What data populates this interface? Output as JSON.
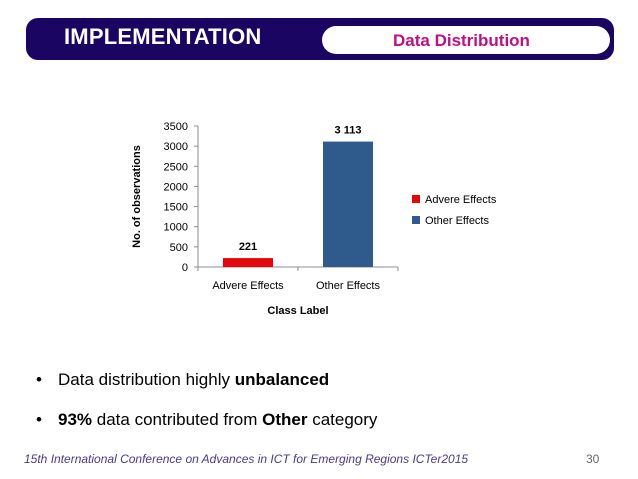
{
  "header": {
    "title": "IMPLEMENTATION",
    "section_tag": "Data Distribution"
  },
  "colors": {
    "header_bg": "#1a0563",
    "tag_text": "#c00f84",
    "adverse_bar": "#e4080a",
    "other_bar": "#2e5a8c"
  },
  "chart_data": {
    "type": "bar",
    "categories": [
      "Advere Effects",
      "Other Effects"
    ],
    "values": [
      221,
      3113
    ],
    "data_labels": [
      "221",
      "3 113"
    ],
    "bar_colors": [
      "#e4080a",
      "#2e5a8c"
    ],
    "xlabel": "Class Label",
    "ylabel": "No. of observations",
    "ylim": [
      0,
      3500
    ],
    "yticks": [
      0,
      500,
      1000,
      1500,
      2000,
      2500,
      3000,
      3500
    ],
    "grid": false,
    "legend": {
      "position": "right",
      "entries": [
        {
          "label": "Advere Effects",
          "color": "#e4080a"
        },
        {
          "label": "Other Effects",
          "color": "#2e5a8c"
        }
      ]
    }
  },
  "bullets": [
    {
      "parts": [
        {
          "text": "Data distribution  highly ",
          "bold": false
        },
        {
          "text": "unbalanced",
          "bold": true
        }
      ]
    },
    {
      "parts": [
        {
          "text": "93%",
          "bold": true
        },
        {
          "text": " data contributed from ",
          "bold": false
        },
        {
          "text": "Other",
          "bold": true
        },
        {
          "text": " category",
          "bold": false
        }
      ]
    }
  ],
  "footer": {
    "conference": "15th International Conference on Advances in ICT for Emerging Regions ICTer2015",
    "page_number": "30"
  }
}
